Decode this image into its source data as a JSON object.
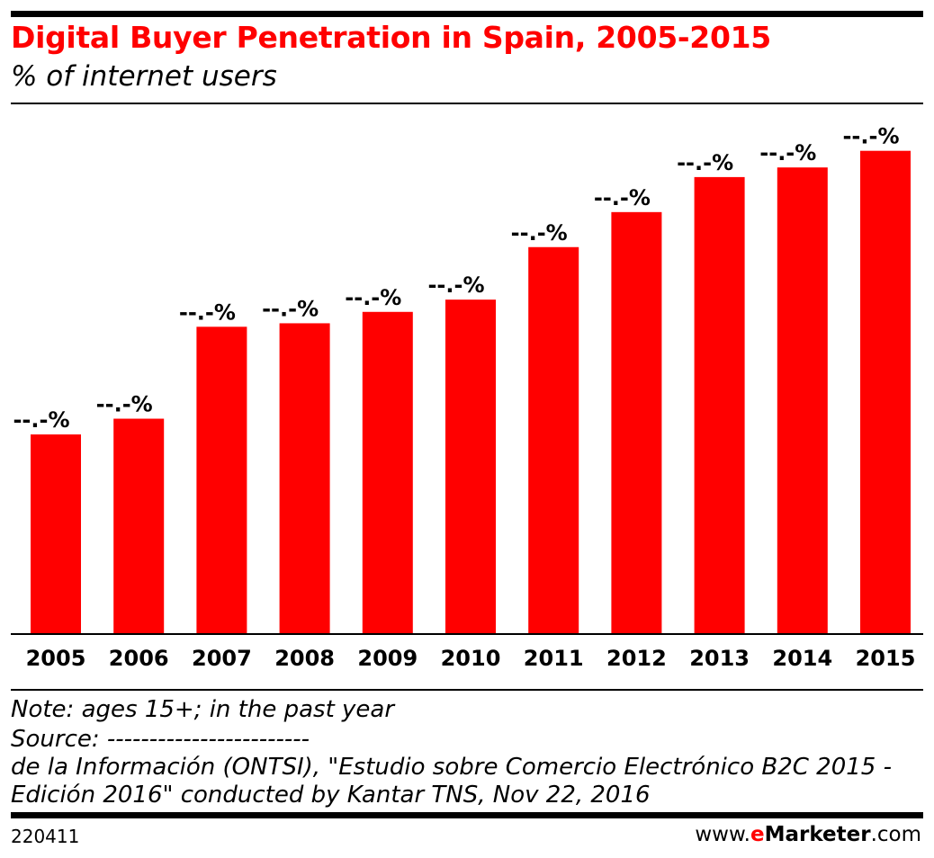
{
  "chart_data": {
    "type": "bar",
    "title": "Digital Buyer Penetration in Spain, 2005-2015",
    "subtitle": "% of internet users",
    "categories": [
      "2005",
      "2006",
      "2007",
      "2008",
      "2009",
      "2010",
      "2011",
      "2012",
      "2013",
      "2014",
      "2015"
    ],
    "values": [
      22.7,
      24.5,
      35.0,
      35.4,
      36.7,
      38.1,
      44.1,
      48.1,
      52.1,
      53.2,
      55.1
    ],
    "data_labels": [
      "--.-%",
      "--.-%",
      "--.-%",
      "--.-%",
      "--.-%",
      "--.-%",
      "--.-%",
      "--.-%",
      "--.-%",
      "--.-%",
      "--.-%"
    ],
    "ylim": [
      0,
      60
    ],
    "grid": false,
    "bar_color": "#ff0000"
  },
  "footer": {
    "note": "Note: ages 15+; in the past year",
    "source_1": "Source: ------------------------",
    "source_2": "de la Información (ONTSI), \"Estudio sobre Comercio Electrónico B2C 2015 -",
    "source_3": "Edición 2016\" conducted by Kantar TNS, Nov 22, 2016",
    "chart_id": "220411",
    "brand_prefix": "www.",
    "brand_e": "e",
    "brand_name": "Marketer",
    "brand_suffix": ".com"
  }
}
